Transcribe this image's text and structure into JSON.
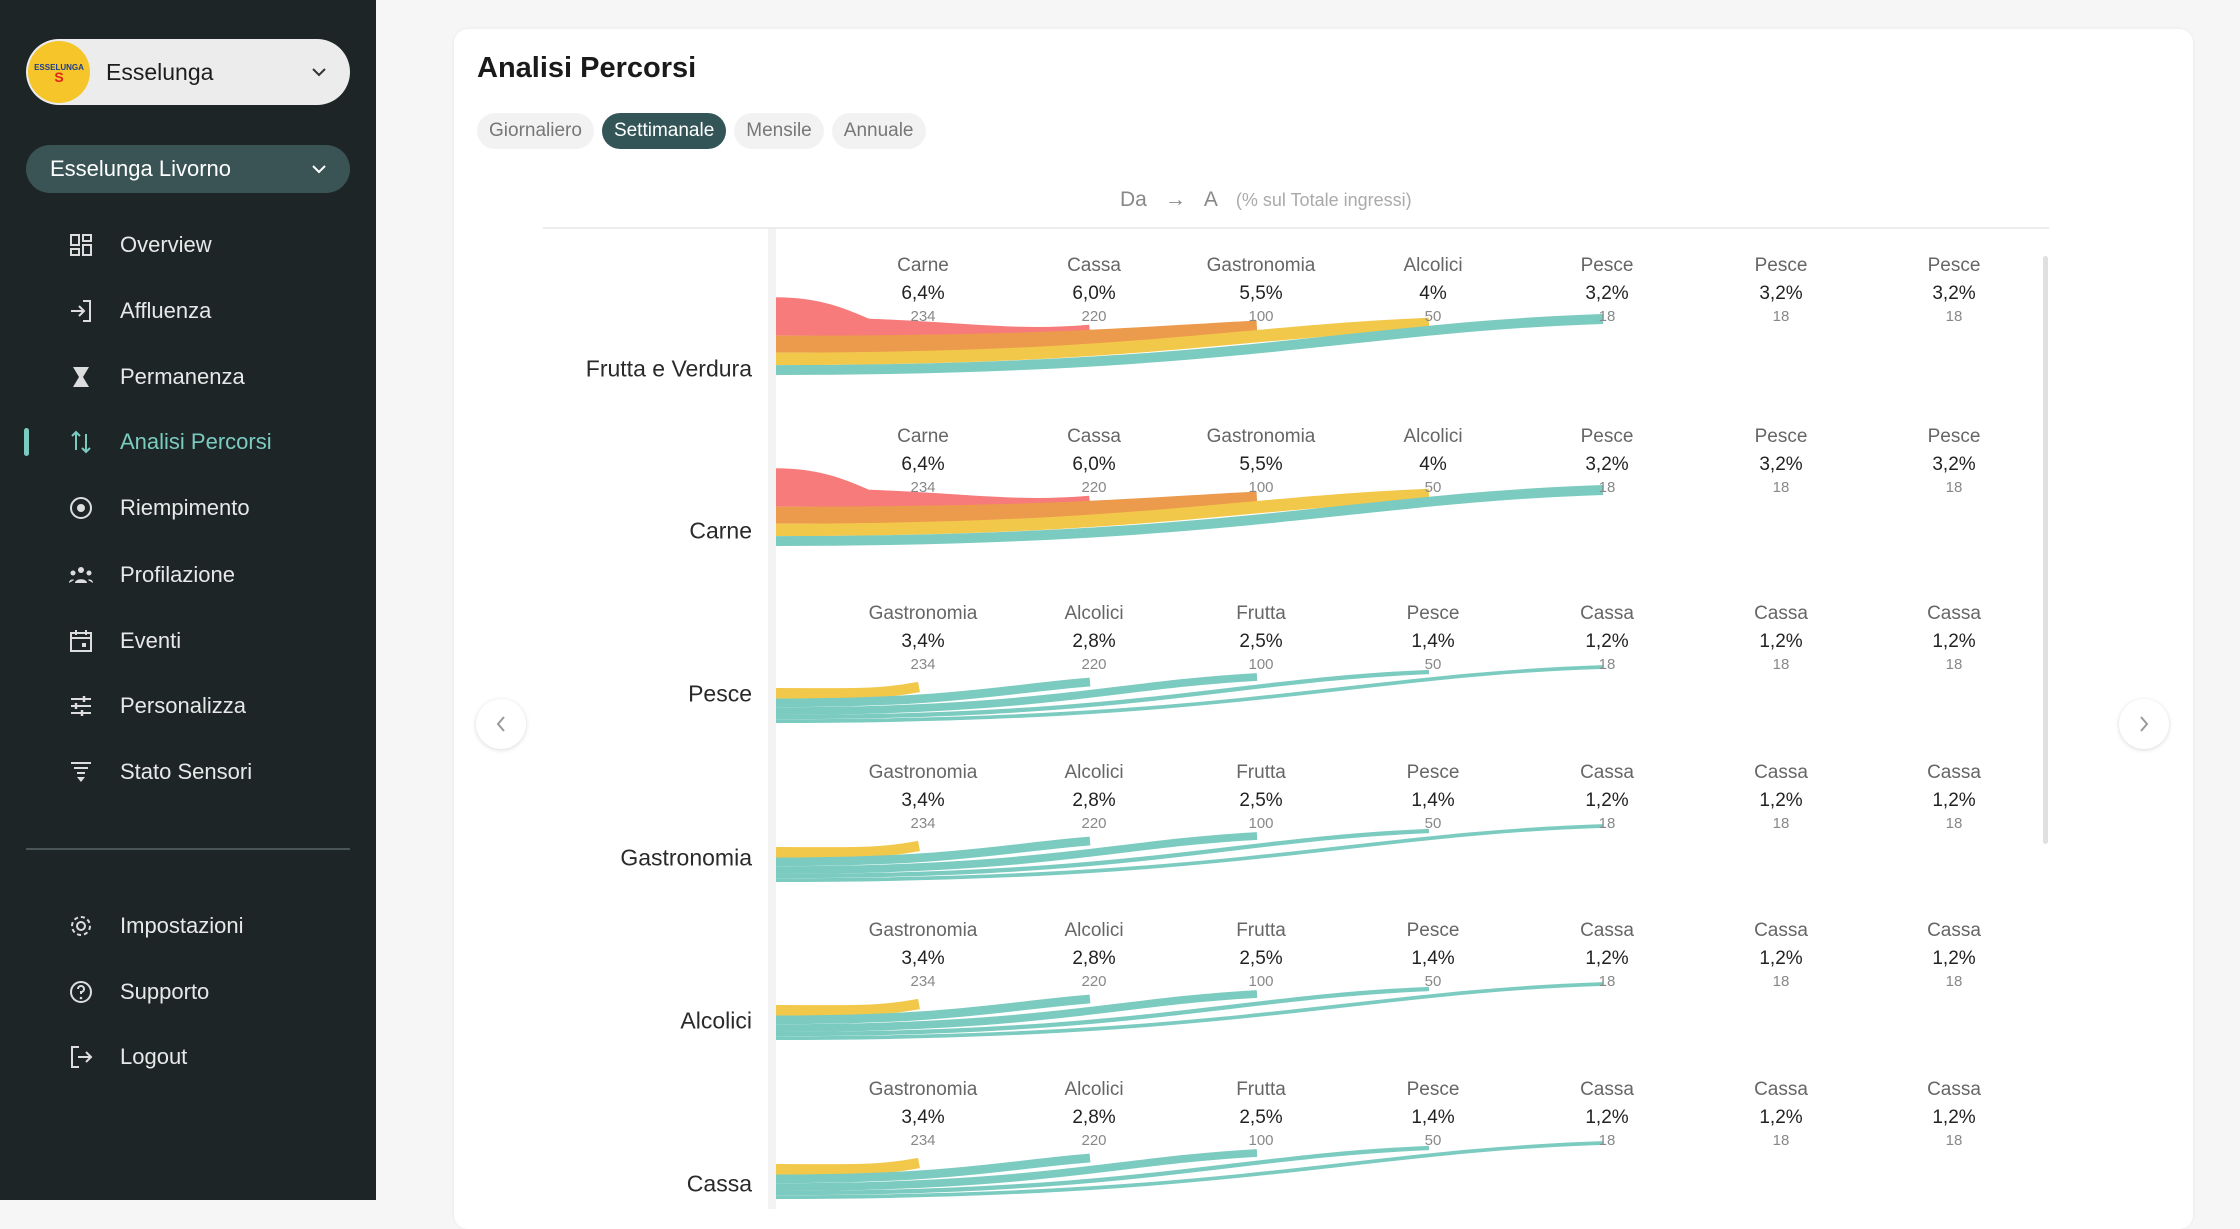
{
  "sidebar": {
    "brand": {
      "name": "Esselunga",
      "logo_text": "ESSELUNGA"
    },
    "store": "Esselunga Livorno",
    "items": [
      {
        "label": "Overview",
        "icon": "grid-icon"
      },
      {
        "label": "Affluenza",
        "icon": "login-icon"
      },
      {
        "label": "Permanenza",
        "icon": "hourglass-icon"
      },
      {
        "label": "Analisi Percorsi",
        "icon": "paths-icon",
        "active": true
      },
      {
        "label": "Riempimento",
        "icon": "target-icon"
      },
      {
        "label": "Profilazione",
        "icon": "users-icon"
      },
      {
        "label": "Eventi",
        "icon": "calendar-icon"
      },
      {
        "label": "Personalizza",
        "icon": "sliders-icon"
      },
      {
        "label": "Stato Sensori",
        "icon": "sensor-icon"
      }
    ],
    "bottom": [
      {
        "label": "Impostazioni",
        "icon": "gear-icon"
      },
      {
        "label": "Supporto",
        "icon": "help-icon"
      },
      {
        "label": "Logout",
        "icon": "logout-icon"
      }
    ]
  },
  "main": {
    "title": "Analisi Percorsi",
    "tabs": [
      {
        "label": "Giornaliero"
      },
      {
        "label": "Settimanale",
        "active": true
      },
      {
        "label": "Mensile"
      },
      {
        "label": "Annuale"
      }
    ],
    "header": {
      "from": "Da",
      "arrow": "→",
      "to": "A",
      "note": "(% sul Totale ingressi)"
    }
  },
  "colors": {
    "accent": "#7ccbc0",
    "pink": "#f77b7b",
    "orange": "#ec9a4b",
    "yellow": "#f2c84b",
    "teal": "#7ccbc0"
  },
  "chart_data": {
    "type": "sankey-rows",
    "rows": [
      {
        "from": "Frutta e Verdura",
        "to": [
          {
            "name": "Carne",
            "pct": "6,4%",
            "value": 6.4,
            "count": "234",
            "color": "#f77b7b"
          },
          {
            "name": "Cassa",
            "pct": "6,0%",
            "value": 6.0,
            "count": "220",
            "color": "#f77b7b"
          },
          {
            "name": "Gastronomia",
            "pct": "5,5%",
            "value": 5.5,
            "count": "100",
            "color": "#ec9a4b"
          },
          {
            "name": "Alcolici",
            "pct": "4%",
            "value": 4,
            "count": "50",
            "color": "#f2c84b"
          },
          {
            "name": "Pesce",
            "pct": "3,2%",
            "value": 3.2,
            "count": "18",
            "color": "#7ccbc0"
          },
          {
            "name": "Pesce",
            "pct": "3,2%",
            "value": 3.2,
            "count": "18"
          },
          {
            "name": "Pesce",
            "pct": "3,2%",
            "value": 3.2,
            "count": "18"
          }
        ]
      },
      {
        "from": "Carne",
        "to": [
          {
            "name": "Carne",
            "pct": "6,4%",
            "value": 6.4,
            "count": "234",
            "color": "#f77b7b"
          },
          {
            "name": "Cassa",
            "pct": "6,0%",
            "value": 6.0,
            "count": "220",
            "color": "#f77b7b"
          },
          {
            "name": "Gastronomia",
            "pct": "5,5%",
            "value": 5.5,
            "count": "100",
            "color": "#ec9a4b"
          },
          {
            "name": "Alcolici",
            "pct": "4%",
            "value": 4,
            "count": "50",
            "color": "#f2c84b"
          },
          {
            "name": "Pesce",
            "pct": "3,2%",
            "value": 3.2,
            "count": "18",
            "color": "#7ccbc0"
          },
          {
            "name": "Pesce",
            "pct": "3,2%",
            "value": 3.2,
            "count": "18"
          },
          {
            "name": "Pesce",
            "pct": "3,2%",
            "value": 3.2,
            "count": "18"
          }
        ]
      },
      {
        "from": "Pesce",
        "to": [
          {
            "name": "Gastronomia",
            "pct": "3,4%",
            "value": 3.4,
            "count": "234",
            "color": "#f2c84b"
          },
          {
            "name": "Alcolici",
            "pct": "2,8%",
            "value": 2.8,
            "count": "220",
            "color": "#7ccbc0"
          },
          {
            "name": "Frutta",
            "pct": "2,5%",
            "value": 2.5,
            "count": "100",
            "color": "#7ccbc0"
          },
          {
            "name": "Pesce",
            "pct": "1,4%",
            "value": 1.4,
            "count": "50",
            "color": "#7ccbc0"
          },
          {
            "name": "Cassa",
            "pct": "1,2%",
            "value": 1.2,
            "count": "18",
            "color": "#7ccbc0"
          },
          {
            "name": "Cassa",
            "pct": "1,2%",
            "value": 1.2,
            "count": "18"
          },
          {
            "name": "Cassa",
            "pct": "1,2%",
            "value": 1.2,
            "count": "18"
          }
        ]
      },
      {
        "from": "Gastronomia",
        "to": [
          {
            "name": "Gastronomia",
            "pct": "3,4%",
            "value": 3.4,
            "count": "234",
            "color": "#f2c84b"
          },
          {
            "name": "Alcolici",
            "pct": "2,8%",
            "value": 2.8,
            "count": "220",
            "color": "#7ccbc0"
          },
          {
            "name": "Frutta",
            "pct": "2,5%",
            "value": 2.5,
            "count": "100",
            "color": "#7ccbc0"
          },
          {
            "name": "Pesce",
            "pct": "1,4%",
            "value": 1.4,
            "count": "50",
            "color": "#7ccbc0"
          },
          {
            "name": "Cassa",
            "pct": "1,2%",
            "value": 1.2,
            "count": "18",
            "color": "#7ccbc0"
          },
          {
            "name": "Cassa",
            "pct": "1,2%",
            "value": 1.2,
            "count": "18"
          },
          {
            "name": "Cassa",
            "pct": "1,2%",
            "value": 1.2,
            "count": "18"
          }
        ]
      },
      {
        "from": "Alcolici",
        "to": [
          {
            "name": "Gastronomia",
            "pct": "3,4%",
            "value": 3.4,
            "count": "234",
            "color": "#f2c84b"
          },
          {
            "name": "Alcolici",
            "pct": "2,8%",
            "value": 2.8,
            "count": "220",
            "color": "#7ccbc0"
          },
          {
            "name": "Frutta",
            "pct": "2,5%",
            "value": 2.5,
            "count": "100",
            "color": "#7ccbc0"
          },
          {
            "name": "Pesce",
            "pct": "1,4%",
            "value": 1.4,
            "count": "50",
            "color": "#7ccbc0"
          },
          {
            "name": "Cassa",
            "pct": "1,2%",
            "value": 1.2,
            "count": "18",
            "color": "#7ccbc0"
          },
          {
            "name": "Cassa",
            "pct": "1,2%",
            "value": 1.2,
            "count": "18"
          },
          {
            "name": "Cassa",
            "pct": "1,2%",
            "value": 1.2,
            "count": "18"
          }
        ]
      },
      {
        "from": "Cassa",
        "to": [
          {
            "name": "Gastronomia",
            "pct": "3,4%",
            "value": 3.4,
            "count": "234",
            "color": "#f2c84b"
          },
          {
            "name": "Alcolici",
            "pct": "2,8%",
            "value": 2.8,
            "count": "220",
            "color": "#7ccbc0"
          },
          {
            "name": "Frutta",
            "pct": "2,5%",
            "value": 2.5,
            "count": "100",
            "color": "#7ccbc0"
          },
          {
            "name": "Pesce",
            "pct": "1,4%",
            "value": 1.4,
            "count": "50",
            "color": "#7ccbc0"
          },
          {
            "name": "Cassa",
            "pct": "1,2%",
            "value": 1.2,
            "count": "18",
            "color": "#7ccbc0"
          },
          {
            "name": "Cassa",
            "pct": "1,2%",
            "value": 1.2,
            "count": "18"
          },
          {
            "name": "Cassa",
            "pct": "1,2%",
            "value": 1.2,
            "count": "18"
          }
        ]
      }
    ]
  }
}
